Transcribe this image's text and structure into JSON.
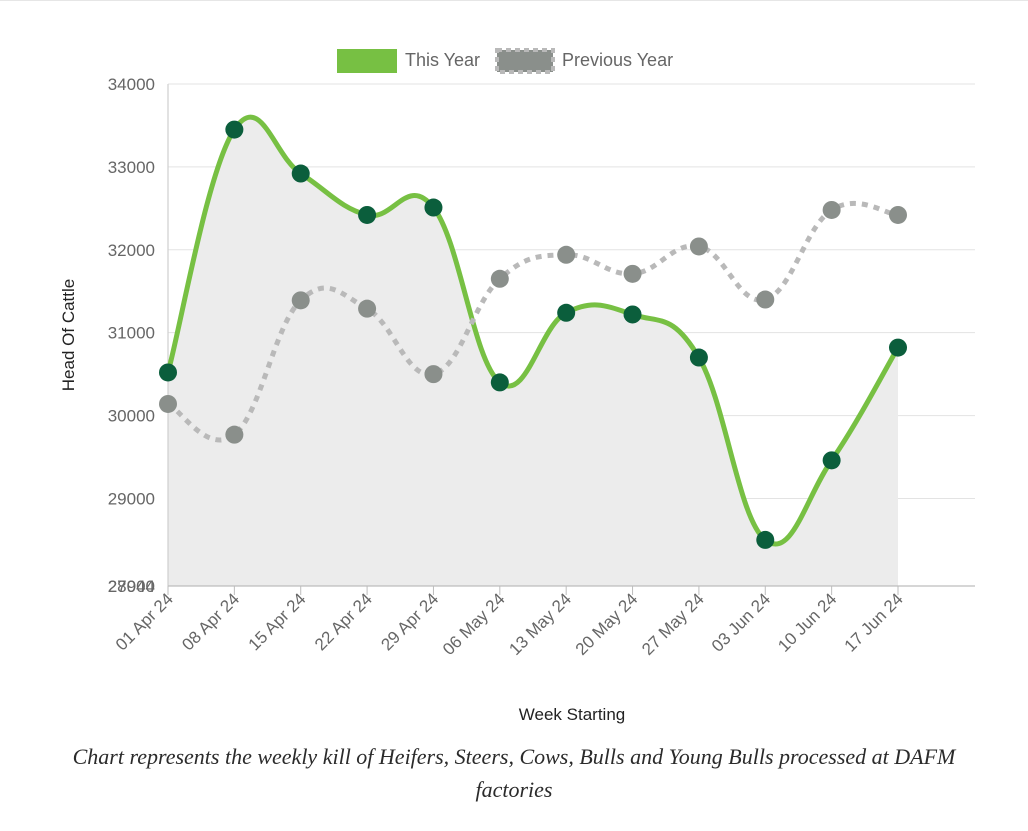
{
  "chart_data": {
    "type": "line",
    "xlabel": "Week Starting",
    "ylabel": "Head Of Cattle",
    "categories": [
      "01 Apr 24",
      "08 Apr 24",
      "15 Apr 24",
      "22 Apr 24",
      "29 Apr 24",
      "06 May 24",
      "13 May 24",
      "20 May 24",
      "27 May 24",
      "03 Jun 24",
      "10 Jun 24",
      "17 Jun 24"
    ],
    "series": [
      {
        "name": "This Year",
        "color": "#77c043",
        "point_color": "#0b5e3c",
        "filled": true,
        "fill_color": "#ececec",
        "values": [
          30520,
          33450,
          32920,
          32420,
          32510,
          30400,
          31240,
          31220,
          30700,
          28500,
          29460,
          30820
        ]
      },
      {
        "name": "Previous Year",
        "color": "#b9b9b9",
        "point_color": "#8a8f8b",
        "dashed": true,
        "values": [
          30140,
          29770,
          31390,
          31290,
          30500,
          31650,
          31940,
          31710,
          32040,
          31400,
          32480,
          32420
        ]
      }
    ],
    "ylim": [
      27944,
      34000
    ],
    "yticks": [
      29000,
      30000,
      31000,
      32000,
      33000,
      34000
    ],
    "bottom_tick_labels": [
      "27944",
      "28000"
    ],
    "grid": true,
    "legend_position": "top-center"
  },
  "caption": "Chart represents the weekly kill of Heifers, Steers, Cows, Bulls and Young Bulls processed at DAFM factories"
}
